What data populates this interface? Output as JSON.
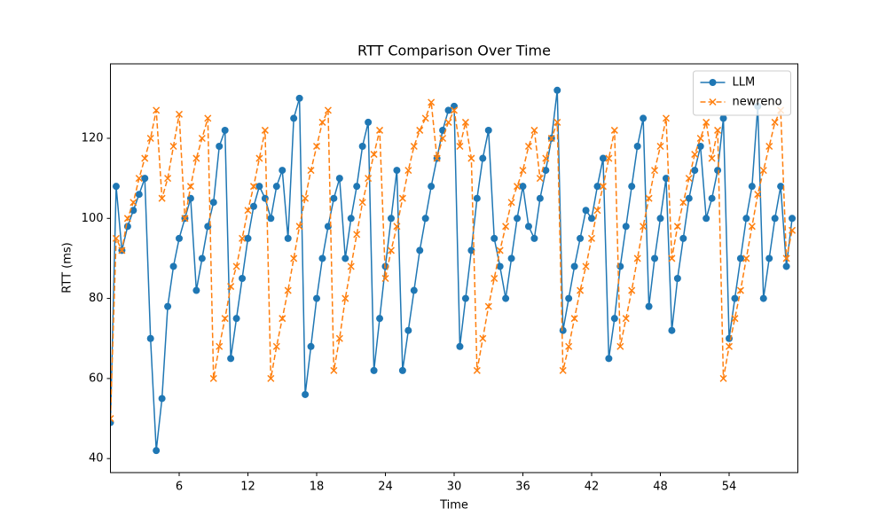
{
  "chart_data": {
    "type": "line",
    "title": "RTT Comparison Over Time",
    "xlabel": "Time",
    "ylabel": "RTT (ms)",
    "x": [
      0,
      0.5,
      1,
      1.5,
      2,
      2.5,
      3,
      3.5,
      4,
      4.5,
      5,
      5.5,
      6,
      6.5,
      7,
      7.5,
      8,
      8.5,
      9,
      9.5,
      10,
      10.5,
      11,
      11.5,
      12,
      12.5,
      13,
      13.5,
      14,
      14.5,
      15,
      15.5,
      16,
      16.5,
      17,
      17.5,
      18,
      18.5,
      19,
      19.5,
      20,
      20.5,
      21,
      21.5,
      22,
      22.5,
      23,
      23.5,
      24,
      24.5,
      25,
      25.5,
      26,
      26.5,
      27,
      27.5,
      28,
      28.5,
      29,
      29.5,
      30,
      30.5,
      31,
      31.5,
      32,
      32.5,
      33,
      33.5,
      34,
      34.5,
      35,
      35.5,
      36,
      36.5,
      37,
      37.5,
      38,
      38.5,
      39,
      39.5,
      40,
      40.5,
      41,
      41.5,
      42,
      42.5,
      43,
      43.5,
      44,
      44.5,
      45,
      45.5,
      46,
      46.5,
      47,
      47.5,
      48,
      48.5,
      49,
      49.5,
      50,
      50.5,
      51,
      51.5,
      52,
      52.5,
      53,
      53.5,
      54,
      54.5,
      55,
      55.5,
      56,
      56.5,
      57,
      57.5,
      58,
      58.5,
      59,
      59.5
    ],
    "series": [
      {
        "name": "LLM",
        "color": "#1f77b4",
        "marker": "o",
        "linestyle": "solid",
        "values": [
          49,
          108,
          92,
          98,
          102,
          106,
          110,
          70,
          42,
          55,
          78,
          88,
          95,
          100,
          105,
          82,
          90,
          98,
          104,
          118,
          122,
          65,
          75,
          85,
          95,
          103,
          108,
          105,
          100,
          108,
          112,
          95,
          125,
          130,
          56,
          68,
          80,
          90,
          98,
          105,
          110,
          90,
          100,
          108,
          118,
          124,
          62,
          75,
          88,
          100,
          112,
          62,
          72,
          82,
          92,
          100,
          108,
          115,
          122,
          127,
          128,
          68,
          80,
          92,
          105,
          115,
          122,
          95,
          88,
          80,
          90,
          100,
          108,
          98,
          95,
          105,
          112,
          120,
          132,
          72,
          80,
          88,
          95,
          102,
          100,
          108,
          115,
          65,
          75,
          88,
          98,
          108,
          118,
          125,
          78,
          90,
          100,
          110,
          72,
          85,
          95,
          105,
          112,
          118,
          100,
          105,
          112,
          125,
          70,
          80,
          90,
          100,
          108,
          128,
          80,
          90,
          100,
          108,
          88,
          100
        ]
      },
      {
        "name": "newreno",
        "color": "#ff7f0e",
        "marker": "x",
        "linestyle": "dashed",
        "values": [
          50,
          95,
          92,
          100,
          104,
          110,
          115,
          120,
          127,
          105,
          110,
          118,
          126,
          100,
          108,
          115,
          120,
          125,
          60,
          68,
          75,
          83,
          88,
          95,
          102,
          108,
          115,
          122,
          60,
          68,
          75,
          82,
          90,
          98,
          105,
          112,
          118,
          124,
          127,
          62,
          70,
          80,
          88,
          96,
          104,
          110,
          116,
          122,
          85,
          92,
          98,
          105,
          112,
          118,
          122,
          125,
          129,
          115,
          120,
          124,
          127,
          118,
          124,
          115,
          62,
          70,
          78,
          85,
          92,
          98,
          104,
          108,
          112,
          118,
          122,
          110,
          115,
          120,
          124,
          62,
          68,
          75,
          82,
          88,
          95,
          102,
          108,
          115,
          122,
          68,
          75,
          82,
          90,
          98,
          105,
          112,
          118,
          125,
          90,
          98,
          104,
          110,
          116,
          120,
          124,
          115,
          122,
          60,
          68,
          75,
          82,
          90,
          98,
          106,
          112,
          118,
          124,
          127,
          90,
          97
        ]
      }
    ],
    "xlim": [
      0,
      60
    ],
    "ylim": [
      36.5,
      138.6
    ],
    "xticks": [
      6,
      12,
      18,
      24,
      30,
      36,
      42,
      48,
      54
    ],
    "yticks": [
      40,
      60,
      80,
      100,
      120
    ],
    "legend": "upper right"
  }
}
